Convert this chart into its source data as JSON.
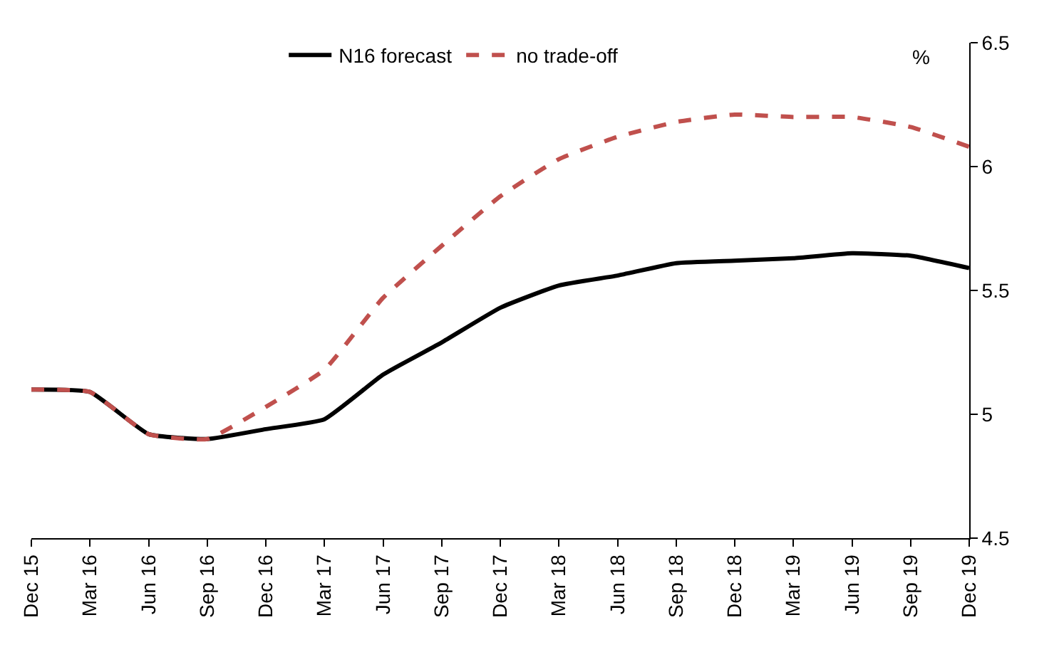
{
  "chart_data": {
    "type": "line",
    "ylabel": "%",
    "categories": [
      "Dec 15",
      "Mar 16",
      "Jun 16",
      "Sep 16",
      "Dec 16",
      "Mar 17",
      "Jun 17",
      "Sep 17",
      "Dec 17",
      "Mar 18",
      "Jun 18",
      "Sep 18",
      "Dec 18",
      "Mar 19",
      "Jun 19",
      "Sep 19",
      "Dec 19"
    ],
    "series": [
      {
        "name": "N16 forecast",
        "color": "#000000",
        "line_style": "solid",
        "values": [
          5.1,
          5.09,
          4.92,
          4.9,
          4.94,
          4.98,
          5.16,
          5.29,
          5.43,
          5.52,
          5.56,
          5.61,
          5.62,
          5.63,
          5.65,
          5.64,
          5.59
        ]
      },
      {
        "name": "no trade-off",
        "color": "#c0504d",
        "line_style": "dashed",
        "values": [
          5.1,
          5.09,
          4.92,
          4.9,
          5.03,
          5.18,
          5.47,
          5.68,
          5.88,
          6.03,
          6.12,
          6.18,
          6.21,
          6.2,
          6.2,
          6.16,
          6.08
        ]
      }
    ],
    "ylim": [
      4.5,
      6.5
    ],
    "yticks": [
      4.5,
      5,
      5.5,
      6,
      6.5
    ],
    "grid": false,
    "legend": "top",
    "marker": "none"
  }
}
